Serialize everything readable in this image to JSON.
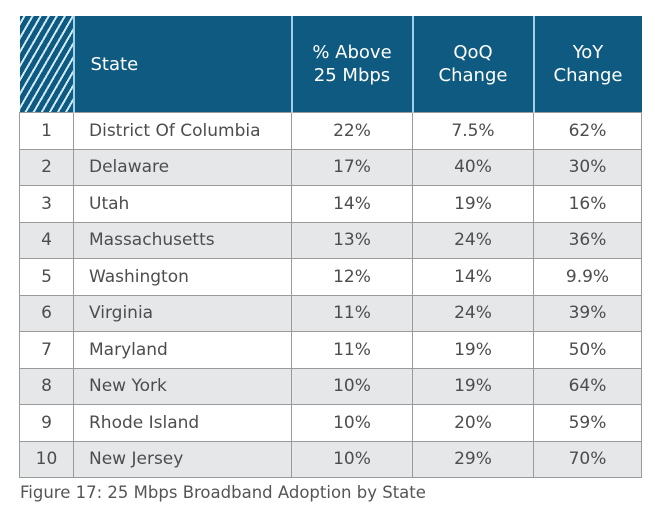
{
  "table": {
    "headers": {
      "corner": "",
      "state": "State",
      "above_line1": "% Above",
      "above_line2": "25 Mbps",
      "qoq_line1": "QoQ",
      "qoq_line2": "Change",
      "yoy_line1": "YoY",
      "yoy_line2": "Change"
    },
    "rows": [
      {
        "rank": "1",
        "state": "District Of Columbia",
        "above": "22%",
        "qoq": "7.5%",
        "yoy": "62%"
      },
      {
        "rank": "2",
        "state": "Delaware",
        "above": "17%",
        "qoq": "40%",
        "yoy": "30%"
      },
      {
        "rank": "3",
        "state": "Utah",
        "above": "14%",
        "qoq": "19%",
        "yoy": "16%"
      },
      {
        "rank": "4",
        "state": "Massachusetts",
        "above": "13%",
        "qoq": "24%",
        "yoy": "36%"
      },
      {
        "rank": "5",
        "state": "Washington",
        "above": "12%",
        "qoq": "14%",
        "yoy": "9.9%"
      },
      {
        "rank": "6",
        "state": "Virginia",
        "above": "11%",
        "qoq": "24%",
        "yoy": "39%"
      },
      {
        "rank": "7",
        "state": "Maryland",
        "above": "11%",
        "qoq": "19%",
        "yoy": "50%"
      },
      {
        "rank": "8",
        "state": "New York",
        "above": "10%",
        "qoq": "19%",
        "yoy": "64%"
      },
      {
        "rank": "9",
        "state": "Rhode Island",
        "above": "10%",
        "qoq": "20%",
        "yoy": "59%"
      },
      {
        "rank": "10",
        "state": "New Jersey",
        "above": "10%",
        "qoq": "29%",
        "yoy": "70%"
      }
    ]
  },
  "caption": "Figure 17: 25 Mbps Broadband Adoption by State",
  "colors": {
    "header_bg": "#0f5a80",
    "header_text": "#ffffff",
    "alt_row_bg": "#e6e7e9",
    "border": "#9a9a9a"
  }
}
